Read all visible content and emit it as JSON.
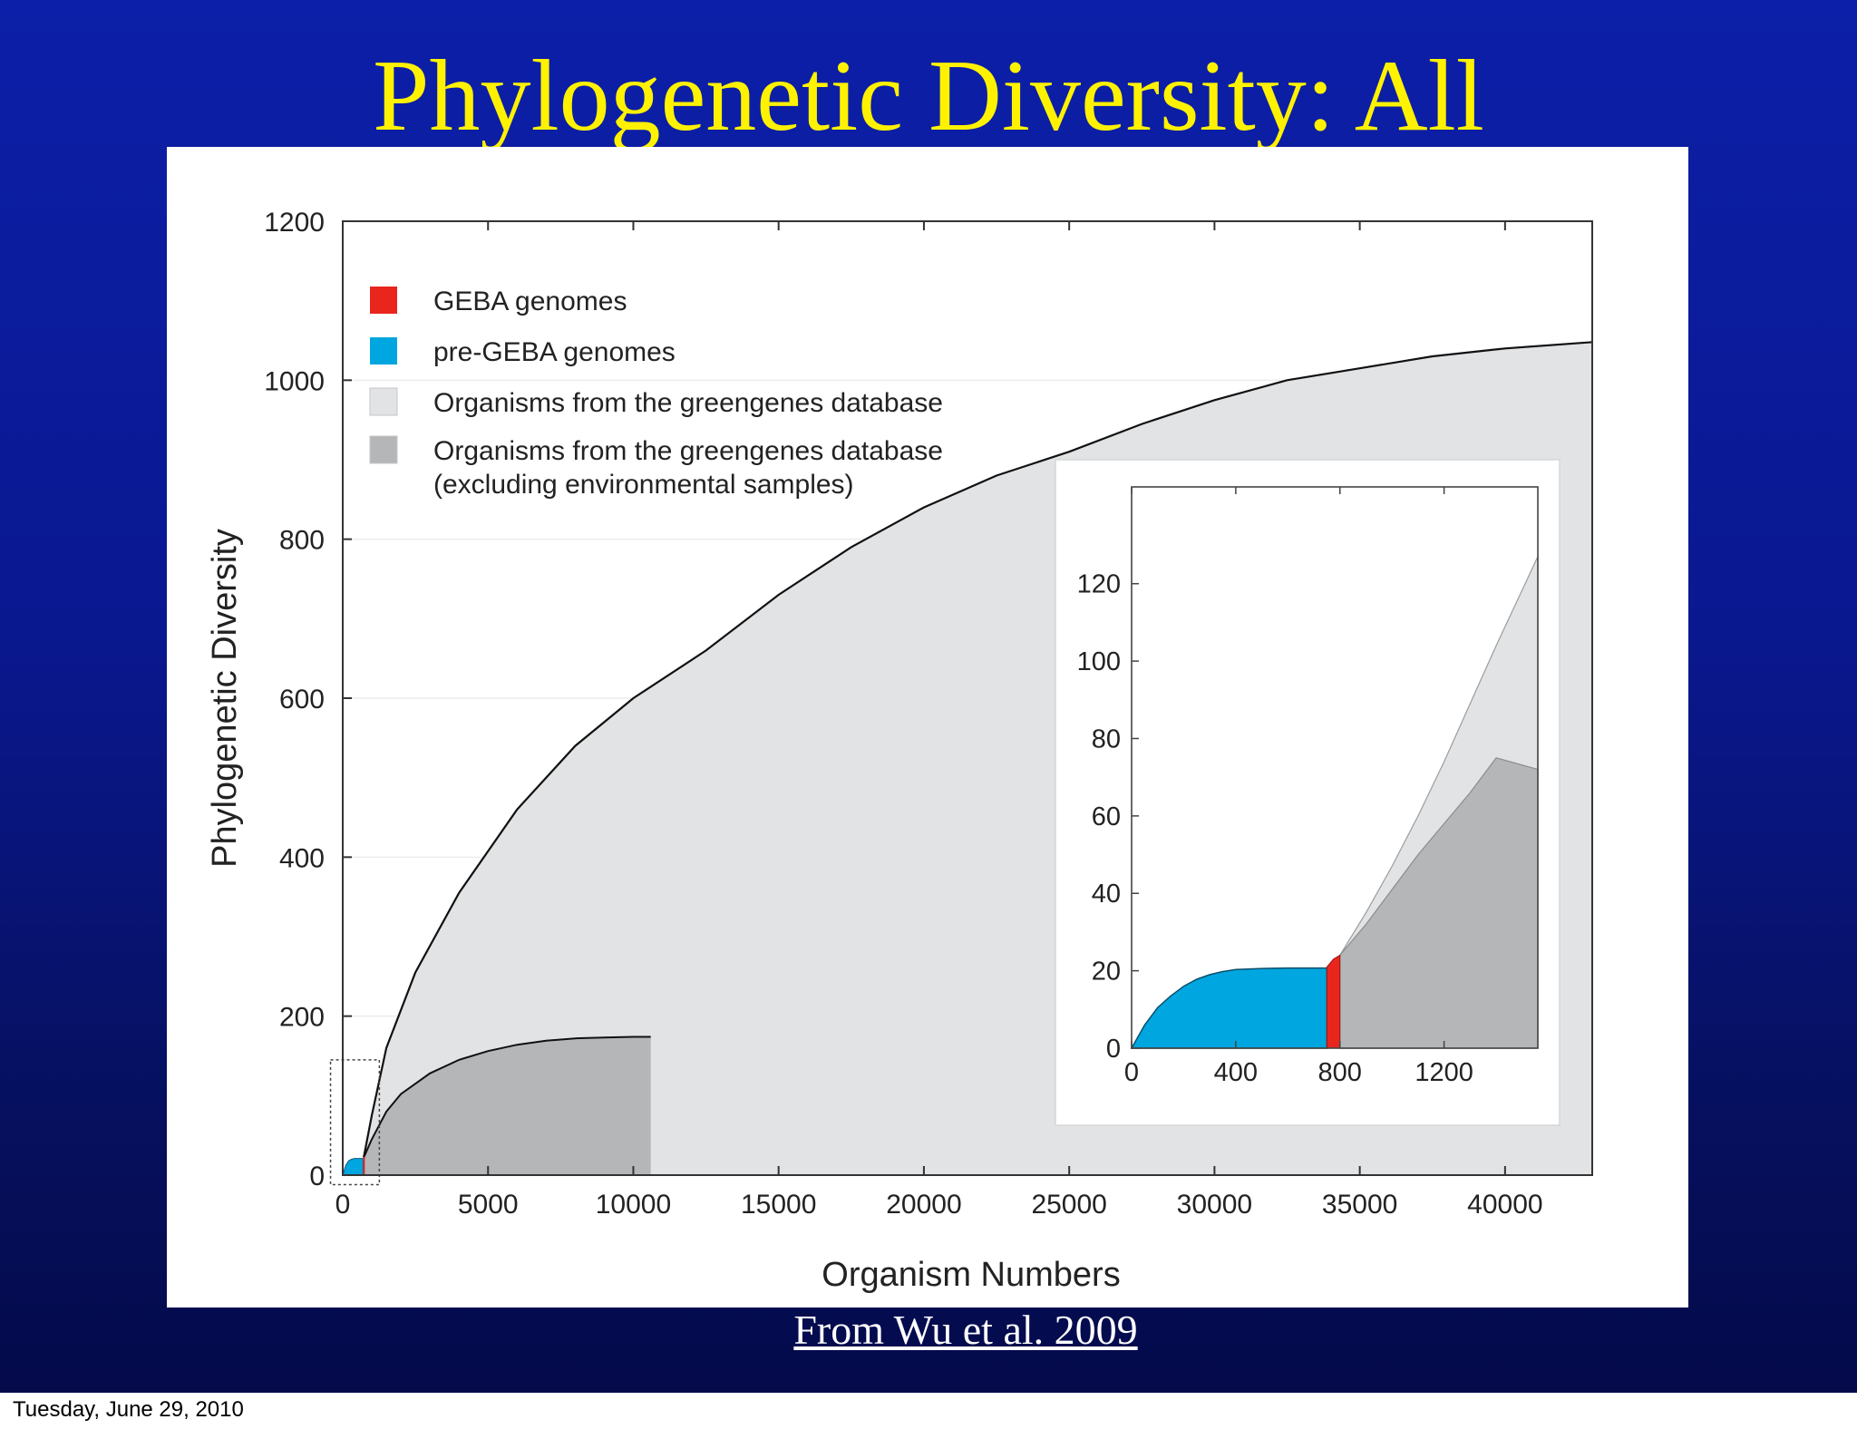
{
  "slide": {
    "title": "Phylogenetic Diversity: All",
    "source": "From Wu et al. 2009",
    "footer": "Tuesday, June 29, 2010"
  },
  "colors": {
    "geba": "#e8261e",
    "pre_geba": "#00a6df",
    "greengenes_all": "#e1e3e4",
    "greengenes_excl_env": "#b4b6b8",
    "title_text": "#fff200"
  },
  "chart_data": [
    {
      "type": "area",
      "title": "",
      "xlabel": "Organism Numbers",
      "ylabel": "Phylogenetic Diversity",
      "xlim": [
        0,
        43000
      ],
      "ylim": [
        0,
        1200
      ],
      "xticks": [
        0,
        5000,
        10000,
        15000,
        20000,
        25000,
        30000,
        35000,
        40000
      ],
      "yticks": [
        0,
        200,
        400,
        600,
        800,
        1000,
        1200
      ],
      "grid": true,
      "legend": {
        "placement": "top-left",
        "entries": [
          "GEBA genomes",
          "pre-GEBA genomes",
          "Organisms from the greengenes database",
          [
            "Organisms from the greengenes database",
            "(excluding environmental samples)"
          ]
        ]
      },
      "series": [
        {
          "name": "Organisms from the greengenes database",
          "x": [
            720,
            1000,
            1500,
            2500,
            4000,
            6000,
            8000,
            10000,
            12500,
            15000,
            17500,
            20000,
            22500,
            25000,
            27500,
            30000,
            32500,
            35000,
            37500,
            40000,
            43000
          ],
          "y": [
            22,
            75,
            160,
            255,
            355,
            460,
            540,
            600,
            660,
            730,
            790,
            840,
            880,
            910,
            945,
            975,
            1000,
            1015,
            1030,
            1040,
            1048
          ]
        },
        {
          "name": "Organisms from the greengenes database (excluding environmental samples)",
          "x": [
            720,
            1000,
            1500,
            2000,
            3000,
            4000,
            5000,
            6000,
            7000,
            8000,
            9000,
            10000,
            10600
          ],
          "y": [
            22,
            45,
            80,
            102,
            128,
            145,
            156,
            164,
            169,
            172,
            173,
            174,
            174
          ]
        },
        {
          "name": "pre-GEBA genomes",
          "x": [
            0,
            100,
            200,
            300,
            400,
            500,
            600,
            700
          ],
          "y": [
            0,
            12,
            18,
            20,
            21,
            21,
            21,
            21
          ]
        },
        {
          "name": "GEBA genomes",
          "x": [
            700,
            720,
            760
          ],
          "y": [
            21,
            22,
            24
          ]
        }
      ]
    },
    {
      "type": "area",
      "title": "",
      "xlabel": "",
      "ylabel": "",
      "xlim": [
        0,
        1560
      ],
      "ylim": [
        0,
        145
      ],
      "xticks": [
        0,
        400,
        800,
        1200
      ],
      "yticks": [
        0,
        20,
        40,
        60,
        80,
        100,
        120
      ],
      "grid": false,
      "series": [
        {
          "name": "Organisms from the greengenes database",
          "x": [
            800,
            900,
            1000,
            1100,
            1200,
            1300,
            1400,
            1560
          ],
          "y": [
            24,
            35,
            47,
            60,
            74,
            89,
            104,
            127
          ]
        },
        {
          "name": "Organisms from the greengenes database (excluding environmental samples)",
          "x": [
            800,
            900,
            1000,
            1100,
            1200,
            1300,
            1400,
            1560
          ],
          "y": [
            24,
            32,
            41,
            50,
            58,
            66,
            75,
            72
          ]
        },
        {
          "name": "pre-GEBA genomes",
          "x": [
            0,
            50,
            100,
            150,
            200,
            250,
            300,
            350,
            400,
            500,
            600,
            700,
            750
          ],
          "y": [
            0,
            6,
            10.5,
            13.5,
            16,
            17.8,
            19,
            19.8,
            20.3,
            20.6,
            20.7,
            20.7,
            20.7
          ]
        },
        {
          "name": "GEBA genomes",
          "x": [
            750,
            775,
            800
          ],
          "y": [
            21,
            23,
            24
          ]
        }
      ]
    }
  ]
}
